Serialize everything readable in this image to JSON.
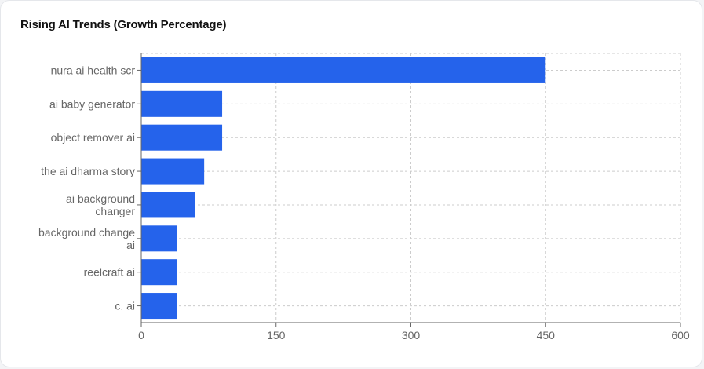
{
  "card": {
    "title": "Rising AI Trends (Growth Percentage)"
  },
  "chart_data": {
    "type": "bar",
    "orientation": "horizontal",
    "title": "Rising AI Trends (Growth Percentage)",
    "xlabel": "",
    "ylabel": "",
    "categories": [
      "nura ai health scr",
      "ai baby generator",
      "object remover ai",
      "the ai dharma story",
      "ai background changer",
      "background change ai",
      "reelcraft ai",
      "c. ai"
    ],
    "category_label_lines": [
      [
        "nura ai health scr"
      ],
      [
        "ai baby generator"
      ],
      [
        "object remover ai"
      ],
      [
        "the ai dharma story"
      ],
      [
        "ai background",
        "changer"
      ],
      [
        "background change",
        "ai"
      ],
      [
        "reelcraft ai"
      ],
      [
        "c. ai"
      ]
    ],
    "values": [
      450,
      90,
      90,
      70,
      60,
      40,
      40,
      40
    ],
    "xlim": [
      0,
      600
    ],
    "xticks": [
      0,
      150,
      300,
      450,
      600
    ],
    "grid": true,
    "legend": "none",
    "bar_color": "#2563eb"
  }
}
